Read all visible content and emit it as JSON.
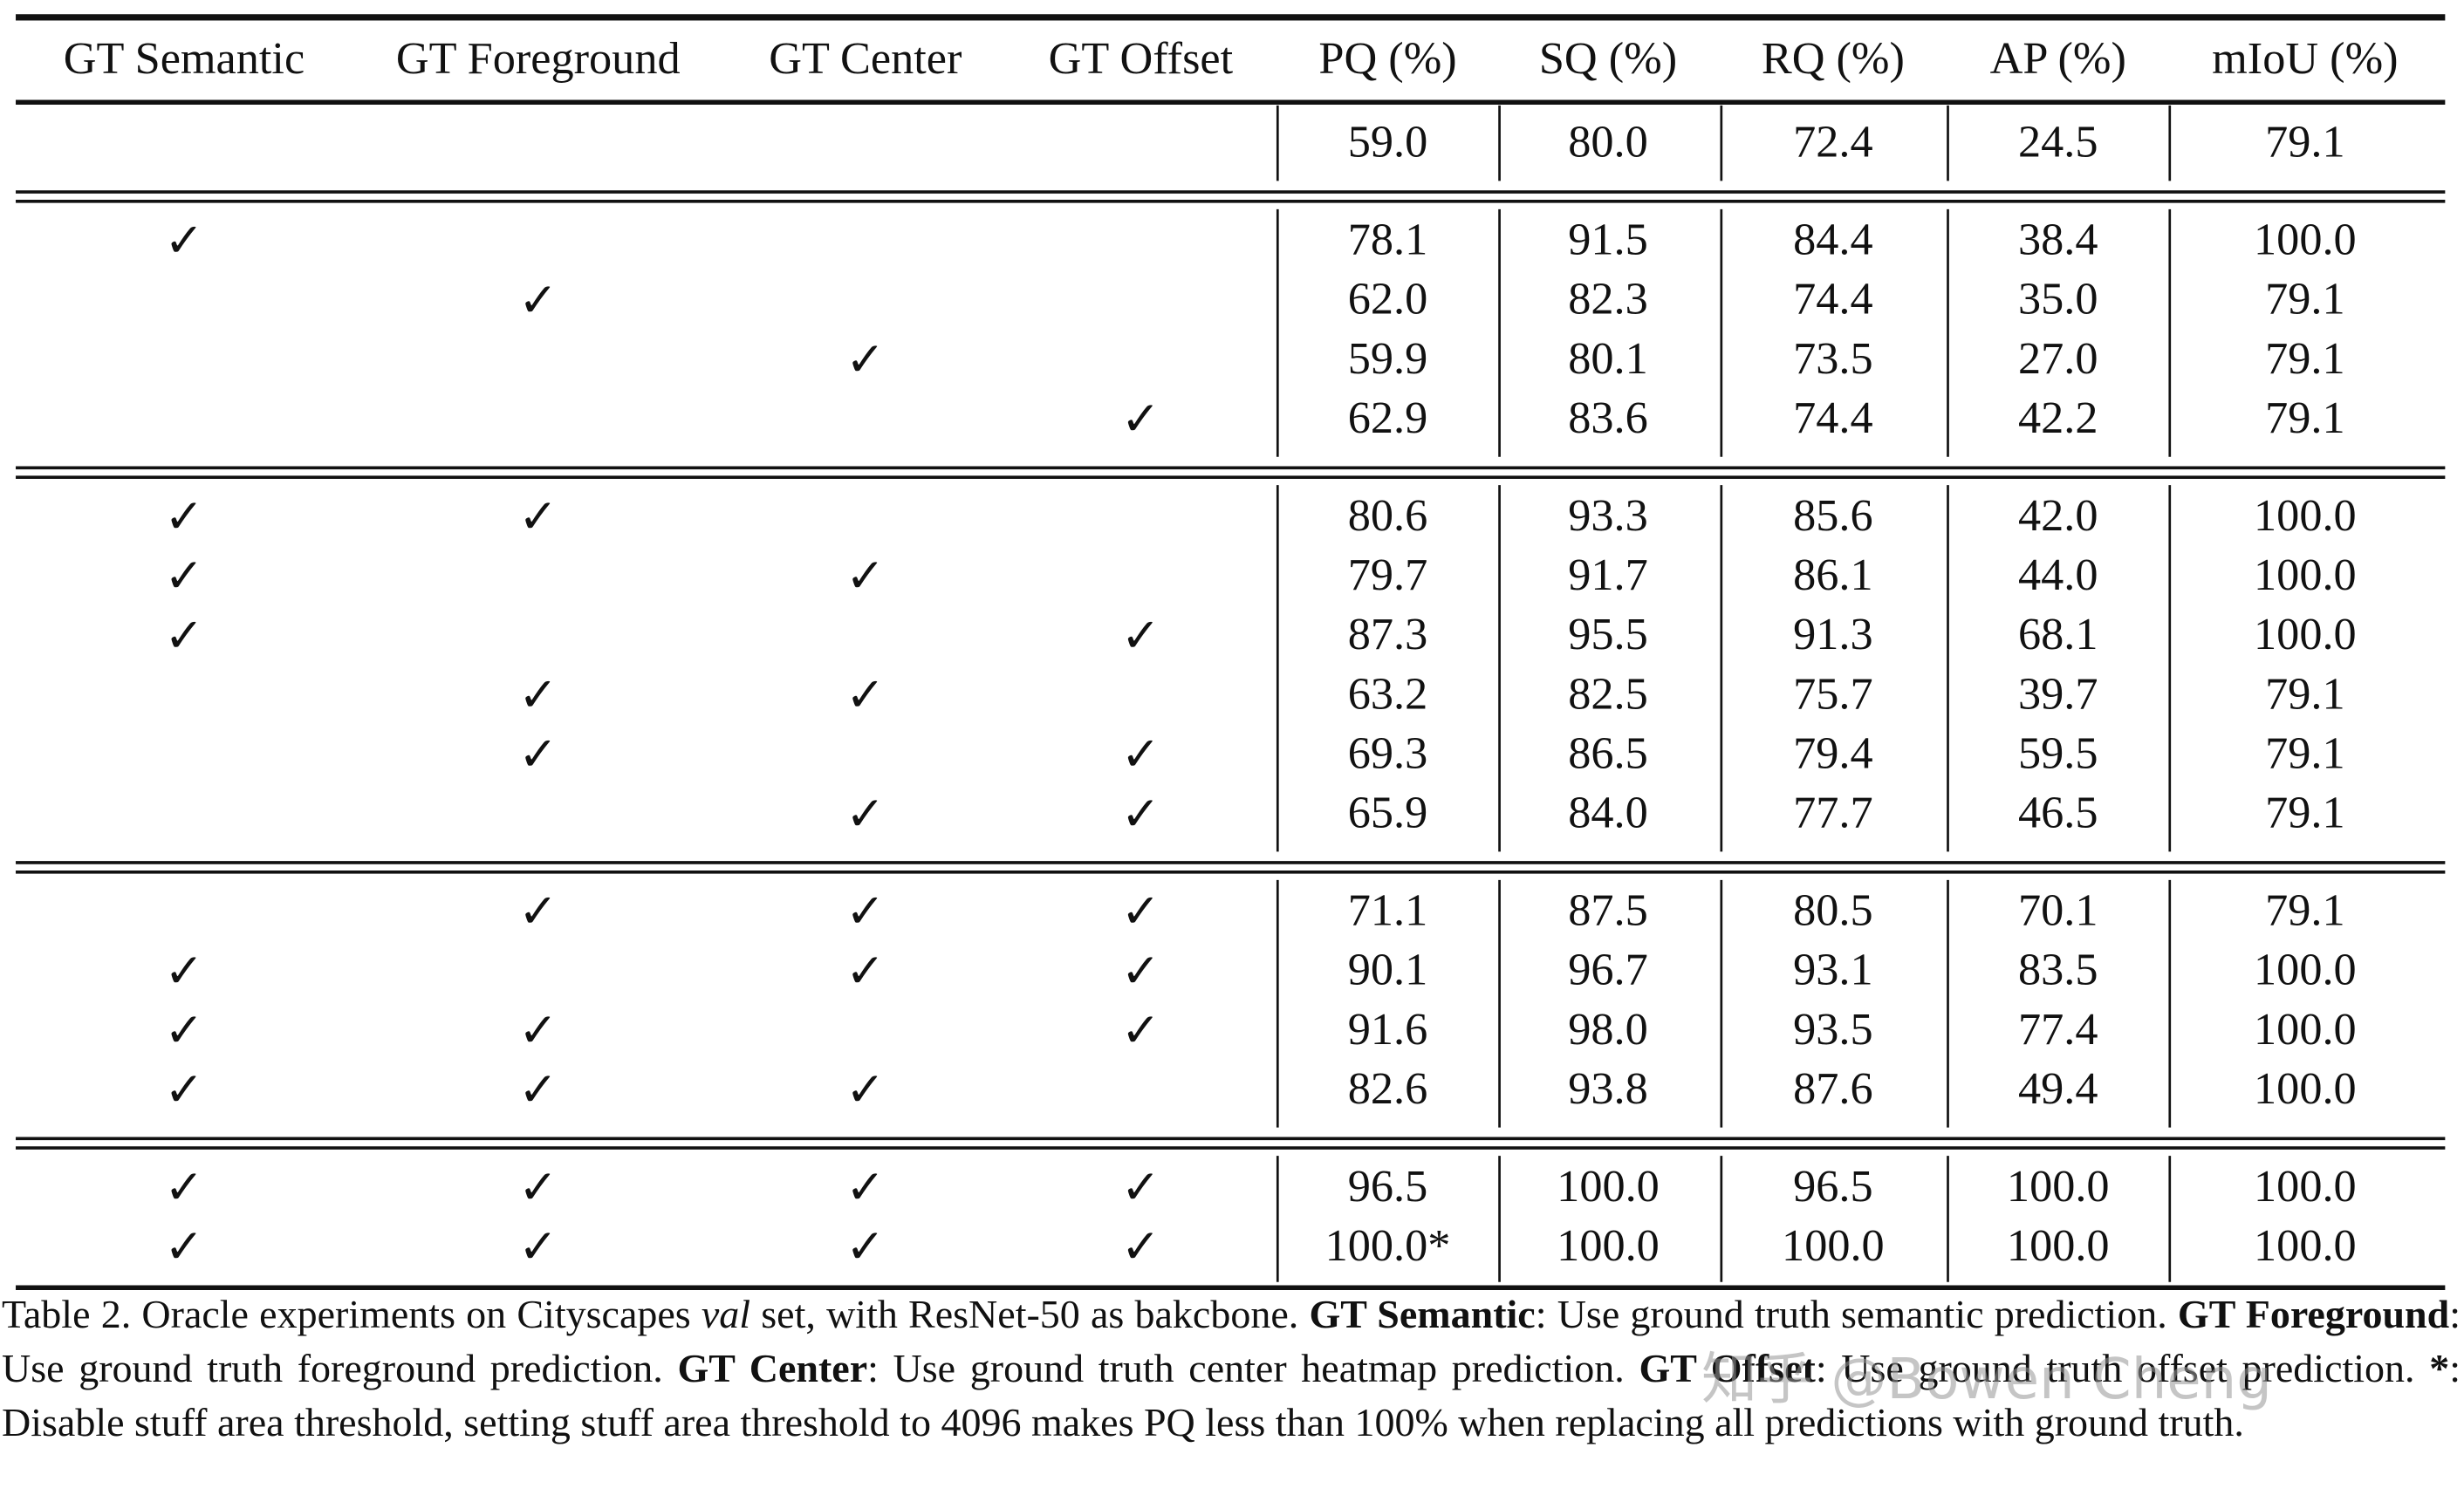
{
  "table": {
    "header": [
      "GT Semantic",
      "GT Foreground",
      "GT Center",
      "GT Offset",
      "PQ (%)",
      "SQ (%)",
      "RQ (%)",
      "AP (%)",
      "mIoU (%)"
    ],
    "groups": [
      [
        [
          null,
          null,
          null,
          null,
          "59.0",
          "80.0",
          "72.4",
          "24.5",
          "79.1"
        ]
      ],
      [
        [
          "✓",
          null,
          null,
          null,
          "78.1",
          "91.5",
          "84.4",
          "38.4",
          "100.0"
        ],
        [
          null,
          "✓",
          null,
          null,
          "62.0",
          "82.3",
          "74.4",
          "35.0",
          "79.1"
        ],
        [
          null,
          null,
          "✓",
          null,
          "59.9",
          "80.1",
          "73.5",
          "27.0",
          "79.1"
        ],
        [
          null,
          null,
          null,
          "✓",
          "62.9",
          "83.6",
          "74.4",
          "42.2",
          "79.1"
        ]
      ],
      [
        [
          "✓",
          "✓",
          null,
          null,
          "80.6",
          "93.3",
          "85.6",
          "42.0",
          "100.0"
        ],
        [
          "✓",
          null,
          "✓",
          null,
          "79.7",
          "91.7",
          "86.1",
          "44.0",
          "100.0"
        ],
        [
          "✓",
          null,
          null,
          "✓",
          "87.3",
          "95.5",
          "91.3",
          "68.1",
          "100.0"
        ],
        [
          null,
          "✓",
          "✓",
          null,
          "63.2",
          "82.5",
          "75.7",
          "39.7",
          "79.1"
        ],
        [
          null,
          "✓",
          null,
          "✓",
          "69.3",
          "86.5",
          "79.4",
          "59.5",
          "79.1"
        ],
        [
          null,
          null,
          "✓",
          "✓",
          "65.9",
          "84.0",
          "77.7",
          "46.5",
          "79.1"
        ]
      ],
      [
        [
          null,
          "✓",
          "✓",
          "✓",
          "71.1",
          "87.5",
          "80.5",
          "70.1",
          "79.1"
        ],
        [
          "✓",
          null,
          "✓",
          "✓",
          "90.1",
          "96.7",
          "93.1",
          "83.5",
          "100.0"
        ],
        [
          "✓",
          "✓",
          null,
          "✓",
          "91.6",
          "98.0",
          "93.5",
          "77.4",
          "100.0"
        ],
        [
          "✓",
          "✓",
          "✓",
          null,
          "82.6",
          "93.8",
          "87.6",
          "49.4",
          "100.0"
        ]
      ],
      [
        [
          "✓",
          "✓",
          "✓",
          "✓",
          "96.5",
          "100.0",
          "96.5",
          "100.0",
          "100.0"
        ],
        [
          "✓",
          "✓",
          "✓",
          "✓",
          "100.0*",
          "100.0",
          "100.0",
          "100.0",
          "100.0"
        ]
      ]
    ]
  },
  "caption": [
    {
      "text": "Table 2. Oracle experiments on Cityscapes ",
      "style": "normal"
    },
    {
      "text": "val",
      "style": "italic"
    },
    {
      "text": " set, with ResNet-50 as bakcbone. ",
      "style": "normal"
    },
    {
      "text": "GT Semantic",
      "style": "bold"
    },
    {
      "text": ": Use ground truth semantic prediction. ",
      "style": "normal"
    },
    {
      "text": "GT Foreground",
      "style": "bold"
    },
    {
      "text": ": Use ground truth foreground prediction. ",
      "style": "normal"
    },
    {
      "text": "GT Center",
      "style": "bold"
    },
    {
      "text": ": Use ground truth center heatmap prediction. ",
      "style": "normal"
    },
    {
      "text": "GT Offset",
      "style": "bold"
    },
    {
      "text": ": Use ground truth offset prediction. ",
      "style": "normal"
    },
    {
      "text": "*",
      "style": "bold"
    },
    {
      "text": ": Disable stuff area threshold, setting stuff area threshold to 4096 makes PQ less than 100% when replacing all predictions with ground truth.",
      "style": "normal"
    }
  ],
  "watermark": "知乎 @Bowen Cheng"
}
